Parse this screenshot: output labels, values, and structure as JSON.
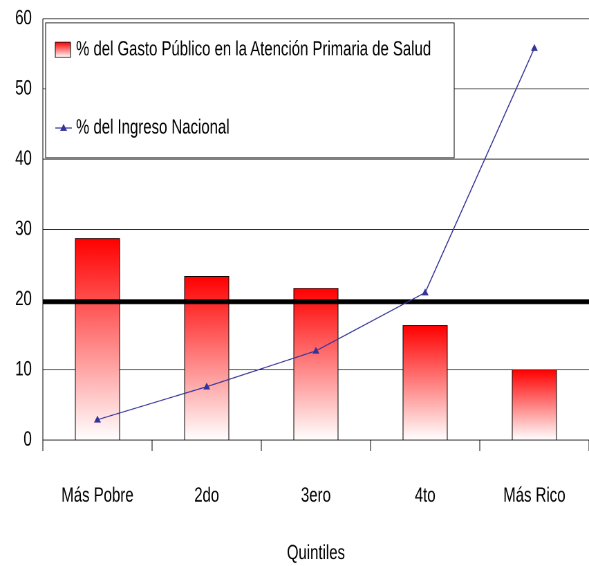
{
  "chart_data": {
    "type": "bar",
    "x_label": "Quintiles",
    "categories": [
      "Más Pobre",
      "2do",
      "3ero",
      "4to",
      "Más Rico"
    ],
    "series": [
      {
        "name": "% del Gasto Público en la Atención Primaria de Salud",
        "type": "bar",
        "color": "#ff0000",
        "values": [
          28.7,
          23.3,
          21.6,
          16.3,
          10
        ]
      },
      {
        "name": "% del Ingreso Nacional",
        "type": "line",
        "color": "#333399",
        "values": [
          2.9,
          7.6,
          12.7,
          21,
          55.8
        ]
      }
    ],
    "reference_line": 19.7,
    "ylim": [
      0,
      60
    ],
    "yticks": [
      0,
      10,
      20,
      30,
      40,
      50,
      60
    ],
    "grid": true,
    "legend": "top-left"
  }
}
